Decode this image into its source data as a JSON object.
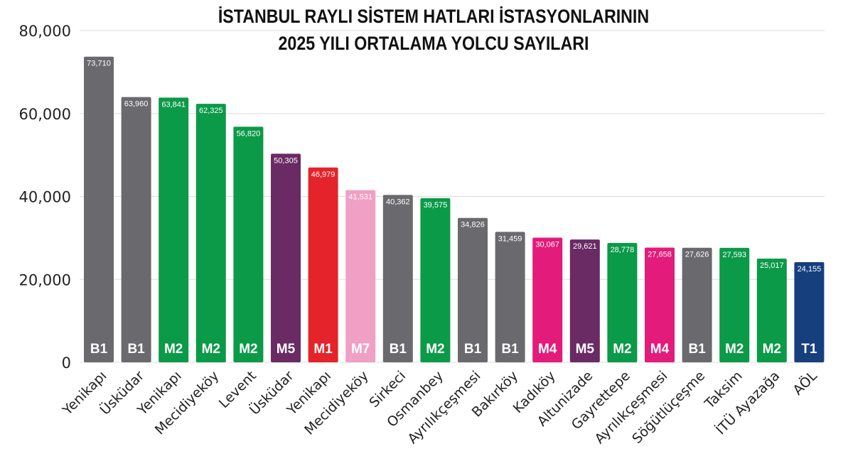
{
  "chart_data": {
    "type": "bar",
    "title_lines": [
      "İSTANBUL RAYLI SİSTEM HATLARI İSTASYONLARININ",
      "2025 YILI ORTALAMA YOLCU SAYILARI"
    ],
    "ylim": [
      0,
      80000
    ],
    "yticks": [
      0,
      20000,
      40000,
      60000,
      80000
    ],
    "ytick_labels": [
      "0",
      "20,000",
      "40,000",
      "60,000",
      "80,000"
    ],
    "grid": true,
    "bars": [
      {
        "station": "Yenikapı",
        "line": "B1",
        "value": 73710,
        "label": "73,710"
      },
      {
        "station": "Üsküdar",
        "line": "B1",
        "value": 63960,
        "label": "63,960"
      },
      {
        "station": "Yenikapı",
        "line": "M2",
        "value": 63841,
        "label": "63,841"
      },
      {
        "station": "Mecidiyeköy",
        "line": "M2",
        "value": 62325,
        "label": "62,325"
      },
      {
        "station": "Levent",
        "line": "M2",
        "value": 56820,
        "label": "56,820"
      },
      {
        "station": "Üsküdar",
        "line": "M5",
        "value": 50305,
        "label": "50,305"
      },
      {
        "station": "Yenikapı",
        "line": "M1",
        "value": 46979,
        "label": "46,979"
      },
      {
        "station": "Mecidiyeköy",
        "line": "M7",
        "value": 41531,
        "label": "41,531"
      },
      {
        "station": "Sirkeci",
        "line": "B1",
        "value": 40362,
        "label": "40,362"
      },
      {
        "station": "Osmanbey",
        "line": "M2",
        "value": 39575,
        "label": "39,575"
      },
      {
        "station": "Ayrılıkçeşmesi",
        "line": "B1",
        "value": 34826,
        "label": "34,826"
      },
      {
        "station": "Bakırköy",
        "line": "B1",
        "value": 31459,
        "label": "31,459"
      },
      {
        "station": "Kadıköy",
        "line": "M4",
        "value": 30067,
        "label": "30,067"
      },
      {
        "station": "Altunizade",
        "line": "M5",
        "value": 29621,
        "label": "29,621"
      },
      {
        "station": "Gayrettepe",
        "line": "M2",
        "value": 28778,
        "label": "28,778"
      },
      {
        "station": "Ayrılıkçeşmesi",
        "line": "M4",
        "value": 27658,
        "label": "27,658"
      },
      {
        "station": "Söğütlüçeşme",
        "line": "B1",
        "value": 27626,
        "label": "27,626"
      },
      {
        "station": "Taksim",
        "line": "M2",
        "value": 27593,
        "label": "27,593"
      },
      {
        "station": "İTÜ Ayazağa",
        "line": "M2",
        "value": 25017,
        "label": "25,017"
      },
      {
        "station": "AÖL",
        "line": "T1",
        "value": 24155,
        "label": "24,155"
      }
    ],
    "line_colors": {
      "B1": "#6a6a6e",
      "M1": "#e5232a",
      "M2": "#0b9a48",
      "M4": "#e31b7a",
      "M5": "#6a2a64",
      "M7": "#f0a0c4",
      "T1": "#163f7e"
    },
    "gridline_color": "#dcdcdc",
    "axis_text_color": "#222222"
  }
}
